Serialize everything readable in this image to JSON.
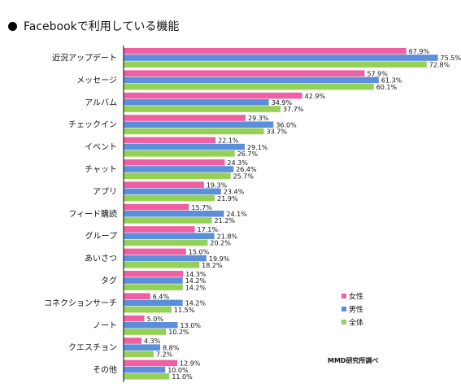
{
  "title": "Facebookで利用している機能",
  "note": "MMD研究所調べ",
  "colors": {
    "female": "#ee5fa3",
    "male": "#5b8fdc",
    "total": "#95d155"
  },
  "chart_data": {
    "type": "bar",
    "orientation": "horizontal",
    "categories": [
      "近況アップデート",
      "メッセージ",
      "アルバム",
      "チェックイン",
      "イベント",
      "チャット",
      "アプリ",
      "フィード購読",
      "グループ",
      "あいさつ",
      "タグ",
      "コネクションサーチ",
      "ノート",
      "クエスチョン",
      "その他"
    ],
    "series": [
      {
        "name": "女性",
        "values": [
          67.9,
          57.9,
          42.9,
          29.3,
          22.1,
          24.3,
          19.3,
          15.7,
          17.1,
          15.0,
          14.3,
          6.4,
          5.0,
          4.3,
          12.9
        ]
      },
      {
        "name": "男性",
        "values": [
          75.5,
          61.3,
          34.9,
          36.0,
          29.1,
          26.4,
          23.4,
          24.1,
          21.8,
          19.9,
          14.2,
          14.2,
          13.0,
          8.8,
          10.0
        ]
      },
      {
        "name": "全体",
        "values": [
          72.8,
          60.1,
          37.7,
          33.7,
          26.7,
          25.7,
          21.9,
          21.2,
          20.2,
          18.2,
          14.2,
          11.5,
          10.2,
          7.2,
          11.0
        ]
      }
    ],
    "value_suffix": "%",
    "xlim": [
      0,
      80
    ],
    "legend_position": "lower-right",
    "grid": false
  }
}
